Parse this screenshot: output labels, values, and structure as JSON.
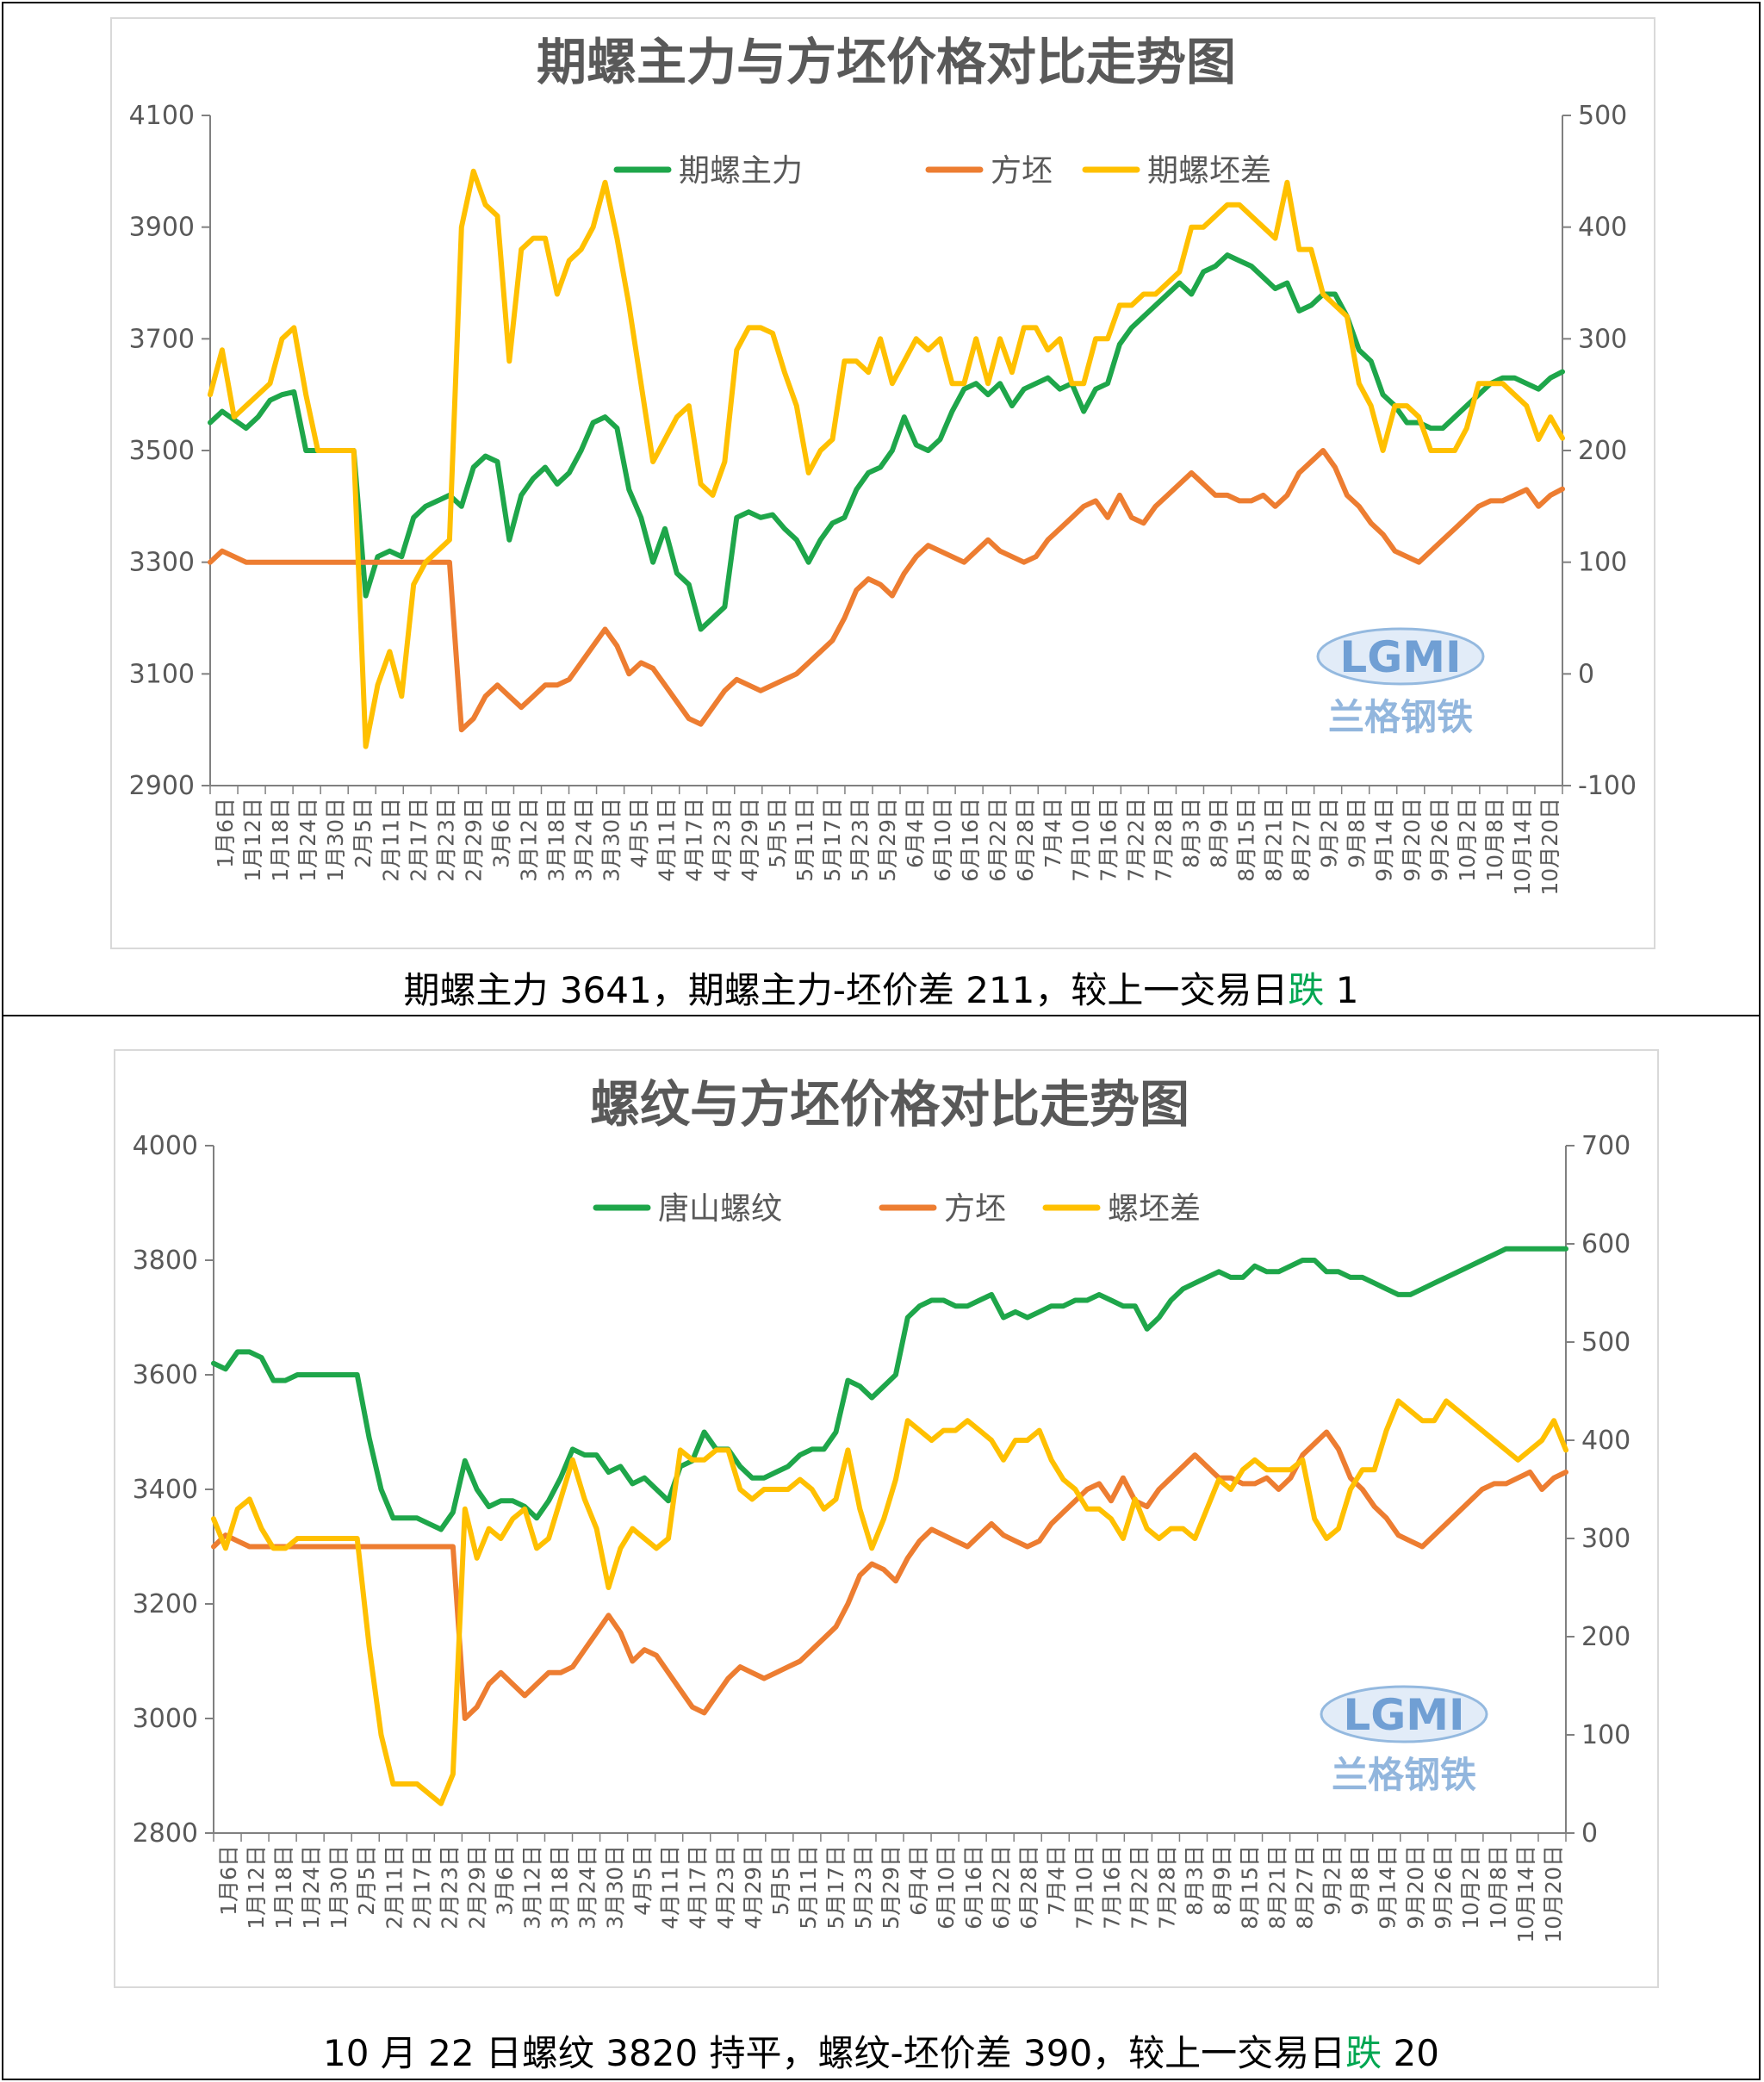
{
  "colors": {
    "green": "#1ea64a",
    "orange": "#ed7d31",
    "yellow": "#ffc000",
    "axis": "#808080",
    "text": "#595959",
    "down": "#00a651"
  },
  "logo": {
    "text": "LGMI",
    "subtext": "兰格钢铁"
  },
  "chart_data": [
    {
      "type": "line",
      "title": "期螺主力与方坯价格对比走势图",
      "x_tick_labels": [
        "1月6日",
        "1月12日",
        "1月18日",
        "1月24日",
        "1月30日",
        "2月5日",
        "2月11日",
        "2月17日",
        "2月23日",
        "2月29日",
        "3月6日",
        "3月12日",
        "3月18日",
        "3月24日",
        "3月30日",
        "4月5日",
        "4月11日",
        "4月17日",
        "4月23日",
        "4月29日",
        "5月5日",
        "5月11日",
        "5月17日",
        "5月23日",
        "5月29日",
        "6月4日",
        "6月10日",
        "6月16日",
        "6月22日",
        "6月28日",
        "7月4日",
        "7月10日",
        "7月16日",
        "7月22日",
        "7月28日",
        "8月3日",
        "8月9日",
        "8月15日",
        "8月21日",
        "8月27日",
        "9月2日",
        "9月8日",
        "9月14日",
        "9月20日",
        "9月26日",
        "10月2日",
        "10月8日",
        "10月14日",
        "10月20日"
      ],
      "y_left": {
        "min": 2900,
        "max": 4100,
        "ticks": [
          2900,
          3100,
          3300,
          3500,
          3700,
          3900,
          4100
        ]
      },
      "y_right": {
        "min": -100,
        "max": 500,
        "ticks": [
          -100,
          0,
          100,
          200,
          300,
          400,
          500
        ]
      },
      "legend": "top",
      "series": [
        {
          "name": "期螺主力",
          "axis": "left",
          "color": "green",
          "values": [
            3550,
            3570,
            3555,
            3540,
            3560,
            3590,
            3600,
            3605,
            3500,
            3500,
            3500,
            3500,
            3500,
            3240,
            3310,
            3320,
            3310,
            3380,
            3400,
            3410,
            3420,
            3400,
            3470,
            3490,
            3480,
            3340,
            3420,
            3450,
            3470,
            3440,
            3460,
            3500,
            3550,
            3560,
            3540,
            3430,
            3380,
            3300,
            3360,
            3280,
            3260,
            3180,
            3200,
            3220,
            3380,
            3390,
            3380,
            3385,
            3360,
            3340,
            3300,
            3340,
            3370,
            3380,
            3430,
            3460,
            3470,
            3500,
            3560,
            3510,
            3500,
            3520,
            3570,
            3610,
            3620,
            3600,
            3620,
            3580,
            3610,
            3620,
            3630,
            3610,
            3620,
            3570,
            3610,
            3620,
            3690,
            3720,
            3740,
            3760,
            3780,
            3800,
            3780,
            3820,
            3830,
            3850,
            3840,
            3830,
            3810,
            3790,
            3800,
            3750,
            3760,
            3780,
            3780,
            3740,
            3680,
            3660,
            3600,
            3580,
            3550,
            3550,
            3540,
            3540,
            3560,
            3580,
            3600,
            3620,
            3630,
            3630,
            3620,
            3610,
            3630,
            3641
          ]
        },
        {
          "name": "方坯",
          "axis": "left",
          "color": "orange",
          "values": [
            3300,
            3320,
            3310,
            3300,
            3300,
            3300,
            3300,
            3300,
            3300,
            3300,
            3300,
            3300,
            3300,
            3300,
            3300,
            3300,
            3300,
            3300,
            3300,
            3300,
            3300,
            3000,
            3020,
            3060,
            3080,
            3060,
            3040,
            3060,
            3080,
            3080,
            3090,
            3120,
            3150,
            3180,
            3150,
            3100,
            3120,
            3110,
            3080,
            3050,
            3020,
            3010,
            3040,
            3070,
            3090,
            3080,
            3070,
            3080,
            3090,
            3100,
            3120,
            3140,
            3160,
            3200,
            3250,
            3270,
            3260,
            3240,
            3280,
            3310,
            3330,
            3320,
            3310,
            3300,
            3320,
            3340,
            3320,
            3310,
            3300,
            3310,
            3340,
            3360,
            3380,
            3400,
            3410,
            3380,
            3420,
            3380,
            3370,
            3400,
            3420,
            3440,
            3460,
            3440,
            3420,
            3420,
            3410,
            3410,
            3420,
            3400,
            3420,
            3460,
            3480,
            3500,
            3470,
            3420,
            3400,
            3370,
            3350,
            3320,
            3310,
            3300,
            3320,
            3340,
            3360,
            3380,
            3400,
            3410,
            3410,
            3420,
            3430,
            3400,
            3420,
            3431
          ]
        },
        {
          "name": "期螺坯差",
          "axis": "right",
          "color": "yellow",
          "values": [
            250,
            290,
            230,
            240,
            250,
            260,
            300,
            310,
            250,
            200,
            200,
            200,
            200,
            -65,
            -10,
            20,
            -20,
            80,
            100,
            110,
            120,
            400,
            450,
            420,
            410,
            280,
            380,
            390,
            390,
            340,
            370,
            380,
            400,
            440,
            390,
            330,
            260,
            190,
            210,
            230,
            240,
            170,
            160,
            190,
            290,
            310,
            310,
            305,
            270,
            240,
            180,
            200,
            210,
            280,
            280,
            270,
            300,
            260,
            280,
            300,
            290,
            300,
            260,
            260,
            300,
            260,
            300,
            270,
            310,
            310,
            290,
            300,
            260,
            260,
            300,
            300,
            330,
            330,
            340,
            340,
            350,
            360,
            400,
            400,
            410,
            420,
            420,
            410,
            400,
            390,
            440,
            380,
            380,
            340,
            330,
            320,
            260,
            240,
            200,
            240,
            240,
            230,
            200,
            200,
            200,
            220,
            260,
            260,
            260,
            250,
            240,
            210,
            230,
            211
          ]
        }
      ]
    },
    {
      "type": "line",
      "title": "螺纹与方坯价格对比走势图",
      "x_tick_labels": [
        "1月6日",
        "1月12日",
        "1月18日",
        "1月24日",
        "1月30日",
        "2月5日",
        "2月11日",
        "2月17日",
        "2月23日",
        "2月29日",
        "3月6日",
        "3月12日",
        "3月18日",
        "3月24日",
        "3月30日",
        "4月5日",
        "4月11日",
        "4月17日",
        "4月23日",
        "4月29日",
        "5月5日",
        "5月11日",
        "5月17日",
        "5月23日",
        "5月29日",
        "6月4日",
        "6月10日",
        "6月16日",
        "6月22日",
        "6月28日",
        "7月4日",
        "7月10日",
        "7月16日",
        "7月22日",
        "7月28日",
        "8月3日",
        "8月9日",
        "8月15日",
        "8月21日",
        "8月27日",
        "9月2日",
        "9月8日",
        "9月14日",
        "9月20日",
        "9月26日",
        "10月2日",
        "10月8日",
        "10月14日",
        "10月20日"
      ],
      "y_left": {
        "min": 2800,
        "max": 4000,
        "ticks": [
          2800,
          3000,
          3200,
          3400,
          3600,
          3800,
          4000
        ]
      },
      "y_right": {
        "min": 0,
        "max": 700,
        "ticks": [
          0,
          100,
          200,
          300,
          400,
          500,
          600,
          700
        ]
      },
      "legend": "top",
      "series": [
        {
          "name": "唐山螺纹",
          "axis": "left",
          "color": "green",
          "values": [
            3620,
            3610,
            3640,
            3640,
            3630,
            3590,
            3590,
            3600,
            3600,
            3600,
            3600,
            3600,
            3600,
            3490,
            3400,
            3350,
            3350,
            3350,
            3340,
            3330,
            3360,
            3450,
            3400,
            3370,
            3380,
            3380,
            3370,
            3350,
            3380,
            3420,
            3470,
            3460,
            3460,
            3430,
            3440,
            3410,
            3420,
            3400,
            3380,
            3440,
            3450,
            3500,
            3470,
            3470,
            3440,
            3420,
            3420,
            3430,
            3440,
            3460,
            3470,
            3470,
            3500,
            3590,
            3580,
            3560,
            3580,
            3600,
            3700,
            3720,
            3730,
            3730,
            3720,
            3720,
            3730,
            3740,
            3700,
            3710,
            3700,
            3710,
            3720,
            3720,
            3730,
            3730,
            3740,
            3730,
            3720,
            3720,
            3680,
            3700,
            3730,
            3750,
            3760,
            3770,
            3780,
            3770,
            3770,
            3790,
            3780,
            3780,
            3790,
            3800,
            3800,
            3780,
            3780,
            3770,
            3770,
            3760,
            3750,
            3740,
            3740,
            3750,
            3760,
            3770,
            3780,
            3790,
            3800,
            3810,
            3820,
            3820,
            3820,
            3820,
            3820,
            3820
          ]
        },
        {
          "name": "方坯",
          "axis": "left",
          "color": "orange",
          "values": [
            3300,
            3320,
            3310,
            3300,
            3300,
            3300,
            3300,
            3300,
            3300,
            3300,
            3300,
            3300,
            3300,
            3300,
            3300,
            3300,
            3300,
            3300,
            3300,
            3300,
            3300,
            3000,
            3020,
            3060,
            3080,
            3060,
            3040,
            3060,
            3080,
            3080,
            3090,
            3120,
            3150,
            3180,
            3150,
            3100,
            3120,
            3110,
            3080,
            3050,
            3020,
            3010,
            3040,
            3070,
            3090,
            3080,
            3070,
            3080,
            3090,
            3100,
            3120,
            3140,
            3160,
            3200,
            3250,
            3270,
            3260,
            3240,
            3280,
            3310,
            3330,
            3320,
            3310,
            3300,
            3320,
            3340,
            3320,
            3310,
            3300,
            3310,
            3340,
            3360,
            3380,
            3400,
            3410,
            3380,
            3420,
            3380,
            3370,
            3400,
            3420,
            3440,
            3460,
            3440,
            3420,
            3420,
            3410,
            3410,
            3420,
            3400,
            3420,
            3460,
            3480,
            3500,
            3470,
            3420,
            3400,
            3370,
            3350,
            3320,
            3310,
            3300,
            3320,
            3340,
            3360,
            3380,
            3400,
            3410,
            3410,
            3420,
            3430,
            3400,
            3420,
            3430
          ]
        },
        {
          "name": "螺坯差",
          "axis": "right",
          "color": "yellow",
          "values": [
            320,
            290,
            330,
            340,
            310,
            290,
            290,
            300,
            300,
            300,
            300,
            300,
            300,
            190,
            100,
            50,
            50,
            50,
            40,
            30,
            60,
            330,
            280,
            310,
            300,
            320,
            330,
            290,
            300,
            340,
            380,
            340,
            310,
            250,
            290,
            310,
            300,
            290,
            300,
            390,
            380,
            380,
            390,
            390,
            350,
            340,
            350,
            350,
            350,
            360,
            350,
            330,
            340,
            390,
            330,
            290,
            320,
            360,
            420,
            410,
            400,
            410,
            410,
            420,
            410,
            400,
            380,
            400,
            400,
            410,
            380,
            360,
            350,
            330,
            330,
            320,
            300,
            340,
            310,
            300,
            310,
            310,
            300,
            330,
            360,
            350,
            370,
            380,
            370,
            370,
            370,
            380,
            320,
            300,
            310,
            350,
            370,
            370,
            410,
            440,
            430,
            420,
            420,
            440,
            430,
            420,
            410,
            400,
            390,
            380,
            390,
            400,
            420,
            390
          ]
        }
      ]
    }
  ],
  "charts_text": [
    {
      "legend": [
        "期螺主力",
        "方坯",
        "期螺坯差"
      ]
    },
    {
      "legend": [
        "唐山螺纹",
        "方坯",
        "螺坯差"
      ]
    }
  ],
  "captions": {
    "top": {
      "prefix": "期螺主力 3641，期螺主力-坯价差 211，较上一交易日",
      "direction": "跌",
      "suffix": " 1"
    },
    "bottom": {
      "prefix": "10 月 22 日螺纹 3820  持平，螺纹-坯价差 390，较上一交易日",
      "direction": "跌",
      "suffix": " 20"
    }
  }
}
